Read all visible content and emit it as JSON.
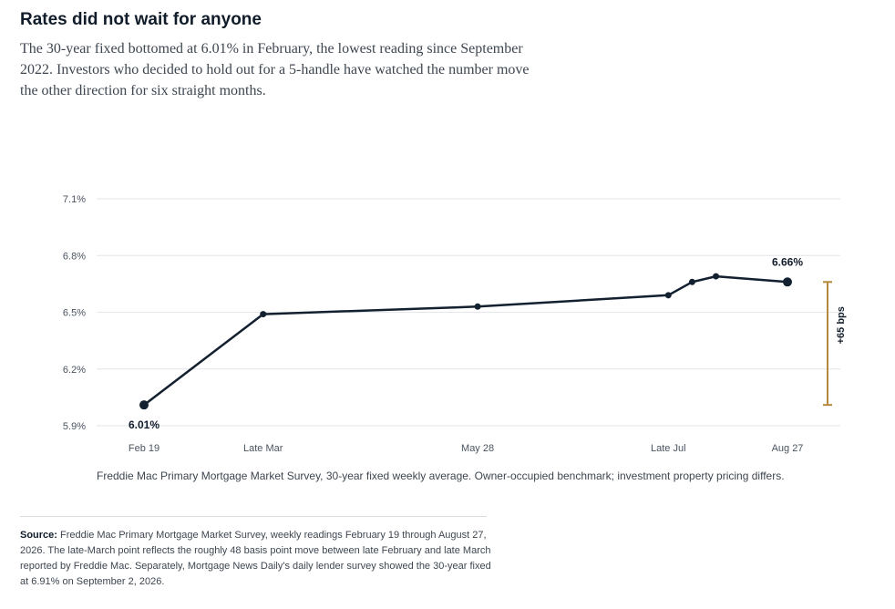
{
  "header": {
    "title": "Rates did not wait for anyone",
    "subtitle": "The 30-year fixed bottomed at 6.01% in February, the lowest reading since September 2022. Investors who decided to hold out for a 5-handle have watched the number move the other direction for six straight months."
  },
  "chart_data": {
    "type": "line",
    "series": [
      {
        "points": [
          {
            "x": "2026-02-19",
            "y": 6.01
          },
          {
            "x": "2026-03-26",
            "y": 6.49
          },
          {
            "x": "2026-05-28",
            "y": 6.53
          },
          {
            "x": "2026-07-23",
            "y": 6.59
          },
          {
            "x": "2026-07-30",
            "y": 6.66
          },
          {
            "x": "2026-08-06",
            "y": 6.69
          },
          {
            "x": "2026-08-27",
            "y": 6.66
          }
        ]
      }
    ],
    "x_tick_labels": [
      {
        "x": "2026-02-19",
        "label": "Feb 19"
      },
      {
        "x": "2026-03-26",
        "label": "Late Mar"
      },
      {
        "x": "2026-05-28",
        "label": "May 28"
      },
      {
        "x": "2026-07-23",
        "label": "Late Jul"
      },
      {
        "x": "2026-08-27",
        "label": "Aug 27"
      }
    ],
    "y_ticks": [
      5.9,
      6.2,
      6.5,
      6.8,
      7.1
    ],
    "y_tick_labels": [
      "5.9%",
      "6.2%",
      "6.5%",
      "6.8%",
      "7.1%"
    ],
    "ylim": [
      5.9,
      7.1
    ],
    "grid": "horizontal",
    "annotations": {
      "start_label": "6.01%",
      "end_label": "6.66%",
      "change_label": "+65 bps"
    },
    "colors": {
      "line": "#13202f",
      "grid": "#e3e6ea",
      "bracket": "#b5893c"
    }
  },
  "caption": "Freddie Mac Primary Mortgage Market Survey, 30-year fixed weekly average. Owner-occupied benchmark; investment property pricing differs.",
  "source": {
    "label": "Source:",
    "text": "Freddie Mac Primary Mortgage Market Survey, weekly readings February 19 through August 27, 2026. The late-March point reflects the roughly 48 basis point move between late February and late March reported by Freddie Mac. Separately, Mortgage News Daily's daily lender survey showed the 30-year fixed at 6.91% on September 2, 2026."
  }
}
